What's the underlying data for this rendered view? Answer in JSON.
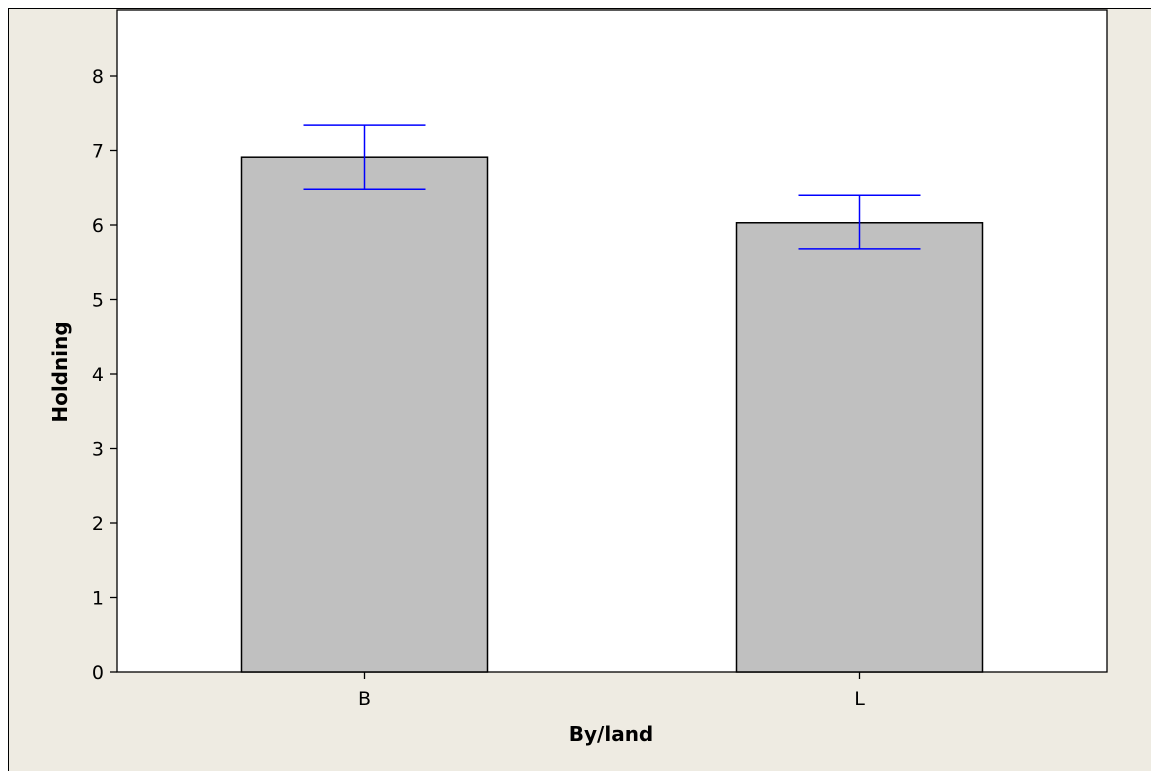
{
  "chart_data": {
    "type": "bar",
    "title": "",
    "xlabel": "By/land",
    "ylabel": "Holdning",
    "categories": [
      "B",
      "L"
    ],
    "values": [
      6.91,
      6.03
    ],
    "error_bars": [
      {
        "category": "B",
        "lower": 6.48,
        "upper": 7.34
      },
      {
        "category": "L",
        "lower": 5.68,
        "upper": 6.4
      }
    ],
    "ylim": [
      0,
      8
    ],
    "yticks": [
      0,
      1,
      2,
      3,
      4,
      5,
      6,
      7,
      8
    ],
    "grid": false,
    "colors": {
      "bar_fill": "#c0c0c0",
      "bar_stroke": "#000000",
      "error_bar": "#0000ff",
      "plot_background": "#ffffff",
      "figure_background": "#eeebe2"
    }
  }
}
